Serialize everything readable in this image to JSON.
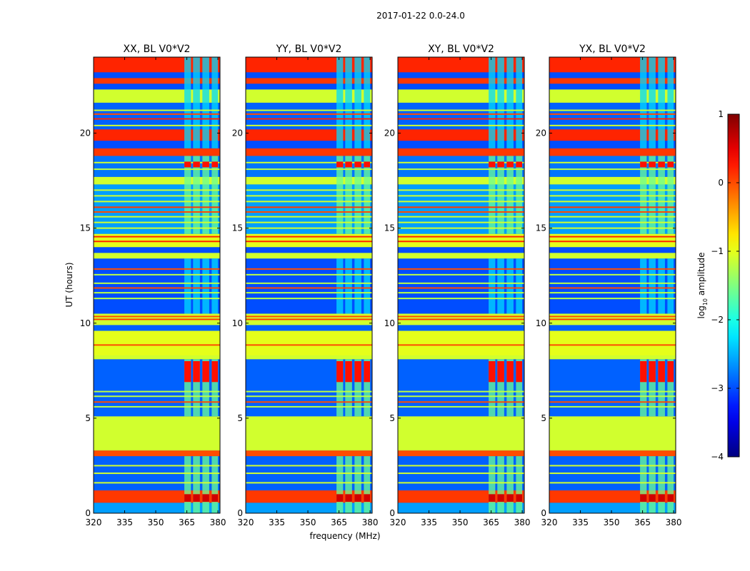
{
  "chart_data": {
    "type": "heatmap",
    "suptitle": "2017-01-22 0.0-24.0",
    "xlabel": "frequency (MHz)",
    "ylabel": "UT (hours)",
    "xlim": [
      320,
      381
    ],
    "ylim": [
      0,
      24
    ],
    "xticks": [
      320,
      335,
      350,
      365,
      380
    ],
    "yticks": [
      0,
      5,
      10,
      15,
      20
    ],
    "panels": [
      {
        "title": "XX, BL V0*V2",
        "pol": "XX"
      },
      {
        "title": "YY, BL V0*V2",
        "pol": "YY"
      },
      {
        "title": "XY, BL V0*V2",
        "pol": "XY"
      },
      {
        "title": "YX, BL V0*V2",
        "pol": "YX"
      }
    ],
    "colorbar": {
      "label": "log10 amplitude",
      "label_base": "log",
      "label_sub": "10",
      "label_rest": " amplitude",
      "range": [
        -4,
        1
      ],
      "ticks": [
        1,
        0,
        -1,
        -2,
        -3,
        -4
      ],
      "ticklabels": [
        "1",
        "0",
        "−1",
        "−2",
        "−3",
        "−4"
      ],
      "colormap": "jet"
    },
    "bands": [
      {
        "t0": 0.0,
        "t1": 0.55,
        "level": -2.6
      },
      {
        "t0": 0.55,
        "t1": 1.2,
        "level": 0.1
      },
      {
        "t0": 1.2,
        "t1": 3.0,
        "level": -2.9
      },
      {
        "t0": 3.0,
        "t1": 3.3,
        "level": 0.0
      },
      {
        "t0": 3.3,
        "t1": 5.1,
        "level": -1.1
      },
      {
        "t0": 5.1,
        "t1": 8.1,
        "level": -2.9
      },
      {
        "t0": 8.1,
        "t1": 8.3,
        "level": -1.1
      },
      {
        "t0": 8.3,
        "t1": 9.6,
        "level": -1.0
      },
      {
        "t0": 9.6,
        "t1": 9.9,
        "level": -2.9
      },
      {
        "t0": 9.9,
        "t1": 10.5,
        "level": -1.1
      },
      {
        "t0": 10.5,
        "t1": 13.4,
        "level": -3.0
      },
      {
        "t0": 13.4,
        "t1": 13.7,
        "level": -1.1
      },
      {
        "t0": 13.7,
        "t1": 14.0,
        "level": -3.0
      },
      {
        "t0": 14.0,
        "t1": 14.7,
        "level": -1.0
      },
      {
        "t0": 14.7,
        "t1": 17.3,
        "level": -2.6
      },
      {
        "t0": 17.3,
        "t1": 17.7,
        "level": -1.1
      },
      {
        "t0": 17.7,
        "t1": 18.8,
        "level": -2.8
      },
      {
        "t0": 18.8,
        "t1": 19.2,
        "level": 0.1
      },
      {
        "t0": 19.2,
        "t1": 19.6,
        "level": -3.0
      },
      {
        "t0": 19.6,
        "t1": 20.2,
        "level": 0.2
      },
      {
        "t0": 20.2,
        "t1": 21.6,
        "level": -2.9
      },
      {
        "t0": 21.6,
        "t1": 22.3,
        "level": -1.1
      },
      {
        "t0": 22.3,
        "t1": 22.6,
        "level": -3.0
      },
      {
        "t0": 22.6,
        "t1": 22.9,
        "level": 0.1
      },
      {
        "t0": 22.9,
        "t1": 23.2,
        "level": -3.0
      },
      {
        "t0": 23.2,
        "t1": 24.0,
        "level": 0.2
      }
    ],
    "lines": [
      {
        "t": 1.6,
        "level": -1.1
      },
      {
        "t": 2.1,
        "level": -1.1
      },
      {
        "t": 2.5,
        "level": -1.1
      },
      {
        "t": 5.6,
        "level": -1.2
      },
      {
        "t": 5.85,
        "level": 0.0
      },
      {
        "t": 6.15,
        "level": -1.2
      },
      {
        "t": 6.4,
        "level": -1.2
      },
      {
        "t": 8.85,
        "level": 0.0
      },
      {
        "t": 10.2,
        "level": 0.1
      },
      {
        "t": 10.35,
        "level": 0.0
      },
      {
        "t": 11.3,
        "level": -1.2
      },
      {
        "t": 11.6,
        "level": -1.2
      },
      {
        "t": 11.85,
        "level": 0.0
      },
      {
        "t": 12.1,
        "level": -1.2
      },
      {
        "t": 12.55,
        "level": -1.2
      },
      {
        "t": 12.85,
        "level": 0.0
      },
      {
        "t": 14.3,
        "level": 0.2
      },
      {
        "t": 14.55,
        "level": 0.2
      },
      {
        "t": 15.0,
        "level": -1.1
      },
      {
        "t": 15.3,
        "level": -1.1
      },
      {
        "t": 15.6,
        "level": -1.1
      },
      {
        "t": 15.85,
        "level": 0.0
      },
      {
        "t": 16.1,
        "level": 0.1
      },
      {
        "t": 16.4,
        "level": -1.1
      },
      {
        "t": 16.7,
        "level": -1.1
      },
      {
        "t": 17.0,
        "level": -1.1
      },
      {
        "t": 18.1,
        "level": -1.2
      },
      {
        "t": 18.45,
        "level": -1.1
      },
      {
        "t": 20.4,
        "level": -1.1
      },
      {
        "t": 20.75,
        "level": 0.2
      },
      {
        "t": 21.0,
        "level": 0.0
      },
      {
        "t": 21.2,
        "level": -1.1
      }
    ],
    "rfi_columns": [
      {
        "f0": 363.8,
        "f1": 367.0
      },
      {
        "f0": 368.0,
        "f1": 371.3
      },
      {
        "f0": 372.5,
        "f1": 375.8
      },
      {
        "f0": 377.0,
        "f1": 380.0
      }
    ],
    "rfi_windows": [
      {
        "t0": 0.0,
        "t1": 3.0,
        "level": -1.6
      },
      {
        "t0": 5.1,
        "t1": 8.1,
        "level": -1.6
      },
      {
        "t0": 10.5,
        "t1": 13.4,
        "level": -2.3
      },
      {
        "t0": 14.7,
        "t1": 18.8,
        "level": -1.6
      },
      {
        "t0": 19.2,
        "t1": 24.0,
        "level": -2.3
      }
    ],
    "hot_spots": [
      {
        "t0": 0.6,
        "t1": 1.0,
        "level": 0.6
      },
      {
        "t0": 6.9,
        "t1": 8.0,
        "level": 0.3
      },
      {
        "t0": 18.2,
        "t1": 18.5,
        "level": 0.3
      }
    ]
  }
}
